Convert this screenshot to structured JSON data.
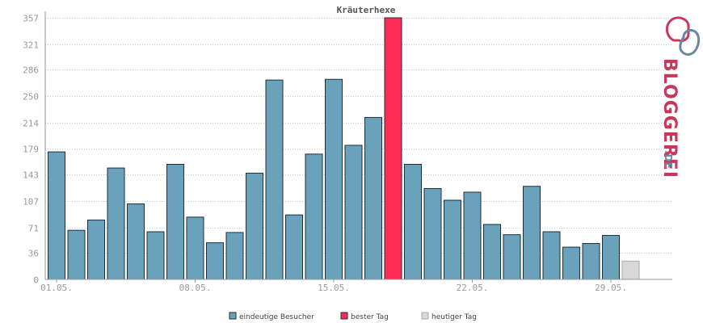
{
  "chart_data": {
    "type": "bar",
    "title": "Kräuterhexe",
    "categories": [
      "01.05.",
      "02.05.",
      "03.05.",
      "04.05.",
      "05.05.",
      "06.05.",
      "07.05.",
      "08.05.",
      "09.05.",
      "10.05.",
      "11.05.",
      "12.05.",
      "13.05.",
      "14.05.",
      "15.05.",
      "16.05.",
      "17.05.",
      "18.05.",
      "19.05.",
      "20.05.",
      "21.05.",
      "22.05.",
      "23.05.",
      "24.05.",
      "25.05.",
      "26.05.",
      "27.05.",
      "28.05.",
      "29.05.",
      "30.05."
    ],
    "x_tick_labels": [
      "01.05.",
      "08.05.",
      "15.05.",
      "22.05.",
      "29.05."
    ],
    "values": [
      174,
      67,
      81,
      152,
      103,
      65,
      157,
      85,
      50,
      64,
      145,
      272,
      88,
      171,
      273,
      183,
      221,
      357,
      157,
      124,
      108,
      119,
      75,
      61,
      127,
      65,
      44,
      49,
      60,
      25
    ],
    "bar_kind": [
      "visitors",
      "visitors",
      "visitors",
      "visitors",
      "visitors",
      "visitors",
      "visitors",
      "visitors",
      "visitors",
      "visitors",
      "visitors",
      "visitors",
      "visitors",
      "visitors",
      "visitors",
      "visitors",
      "visitors",
      "best",
      "visitors",
      "visitors",
      "visitors",
      "visitors",
      "visitors",
      "visitors",
      "visitors",
      "visitors",
      "visitors",
      "visitors",
      "visitors",
      "today"
    ],
    "yticks": [
      0,
      36,
      71,
      107,
      143,
      179,
      214,
      250,
      286,
      321,
      357
    ],
    "ylim": [
      0,
      357
    ],
    "grid": true,
    "legend": {
      "position": "bottom",
      "items": [
        {
          "key": "visitors",
          "label": "eindeutige Besucher",
          "color": "#6aa2bb"
        },
        {
          "key": "best",
          "label": "bester Tag",
          "color": "#ff2a55"
        },
        {
          "key": "today",
          "label": "heutiger Tag",
          "color": "#d8d8d8"
        }
      ]
    },
    "colors": {
      "visitors": "#6aa2bb",
      "best": "#ff2a55",
      "today": "#d8d8d8",
      "border_dark": "#1f2f3a",
      "border_today": "#aaaaaa"
    }
  },
  "logo": {
    "text": "BLOGGEREI",
    "suffix": ".DE",
    "color_primary": "#c8385e",
    "color_secondary": "#6a87a3"
  }
}
